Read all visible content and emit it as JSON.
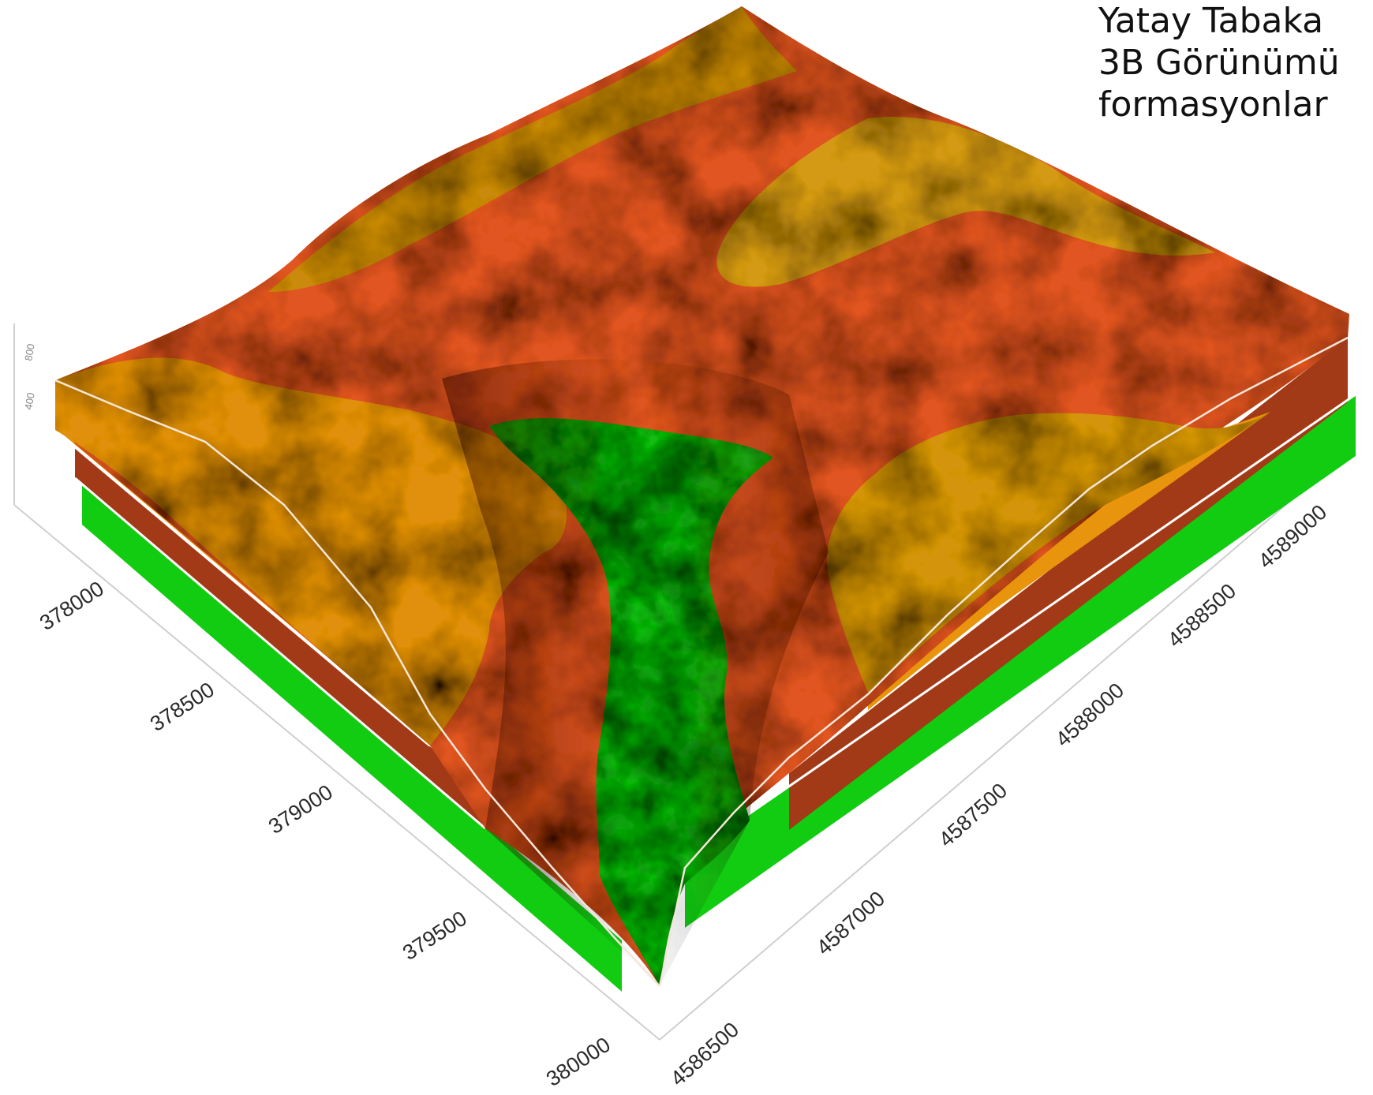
{
  "title": {
    "line1": "Yatay Tabaka",
    "line2": "3B Görünümü",
    "line3": "formasyonlar"
  },
  "axes": {
    "left_ticks": [
      "378000",
      "378500",
      "379000",
      "379500",
      "380000"
    ],
    "right_ticks": [
      "4586500",
      "4587000",
      "4587500",
      "4588000",
      "4588500",
      "4589000"
    ],
    "z_ticks": [
      "800",
      "400"
    ]
  },
  "layers": [
    {
      "id": "top",
      "color": "#e8940c"
    },
    {
      "id": "middle",
      "color": "#a33a17"
    },
    {
      "id": "bottom",
      "color": "#11cc11"
    }
  ],
  "colors": {
    "orange": "#e8940c",
    "red": "#e05520",
    "dark_red": "#6a1a08",
    "green": "#11cc11",
    "dark_green": "#0a4a0a"
  }
}
